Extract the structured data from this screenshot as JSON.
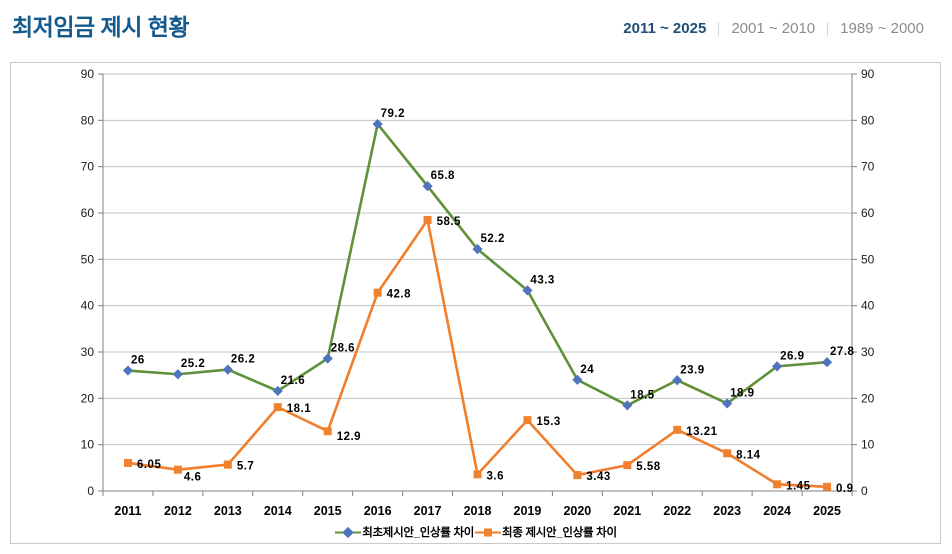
{
  "header": {
    "title": "최저임금 제시 현황",
    "tabs": [
      {
        "label": "2011 ~ 2025",
        "active": true
      },
      {
        "label": "2001 ~ 2010",
        "active": false
      },
      {
        "label": "1989 ~ 2000",
        "active": false
      }
    ]
  },
  "chart_data": {
    "type": "line",
    "title": "최저임금 제시 현황",
    "categories": [
      "2011",
      "2012",
      "2013",
      "2014",
      "2015",
      "2016",
      "2017",
      "2018",
      "2019",
      "2020",
      "2021",
      "2022",
      "2023",
      "2024",
      "2025"
    ],
    "series": [
      {
        "name": "최초제시안_인상률 차이",
        "marker": "diamond",
        "line_color": "#5e9138",
        "marker_color": "#4f74be",
        "values": [
          26,
          25.2,
          26.2,
          21.6,
          28.6,
          79.2,
          65.8,
          52.2,
          43.3,
          24,
          18.5,
          23.9,
          18.9,
          26.9,
          27.8
        ],
        "labels": [
          "26",
          "25.2",
          "26.2",
          "21.6",
          "28.6",
          "79.2",
          "65.8",
          "52.2",
          "43.3",
          "24",
          "18.5",
          "23.9",
          "18.9",
          "26.9",
          "27.8"
        ]
      },
      {
        "name": "최종 제시안_인상률 차이",
        "marker": "square",
        "line_color": "#f07e2c",
        "marker_color": "#f0812f",
        "values": [
          6.05,
          4.6,
          5.7,
          18.1,
          12.9,
          42.8,
          58.5,
          3.6,
          15.3,
          3.43,
          5.58,
          13.21,
          8.14,
          1.45,
          0.9
        ],
        "labels": [
          "6.05",
          "4.6",
          "5.7",
          "18.1",
          "12.9",
          "42.8",
          "58.5",
          "3.6",
          "15.3",
          "3.43",
          "5.58",
          "13.21",
          "8.14",
          "1.45",
          "0.9"
        ]
      }
    ],
    "ylim": [
      0,
      90
    ],
    "ytick_step": 10,
    "yticks_left": [
      "0",
      "10",
      "20",
      "30",
      "40",
      "50",
      "60",
      "70",
      "80",
      "90"
    ],
    "yticks_right": [
      "0",
      "10",
      "20",
      "30",
      "40",
      "50",
      "60",
      "70",
      "80",
      "90"
    ],
    "grid": true,
    "legend_position": "bottom",
    "colors": {
      "gridline": "#c3c3c3",
      "axis": "#808080",
      "tick_text": "#1a1a1a",
      "data_label": "#000000"
    }
  }
}
